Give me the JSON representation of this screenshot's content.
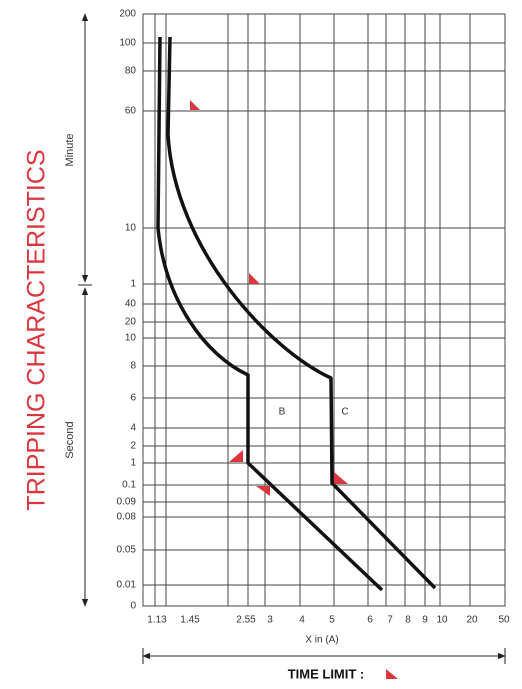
{
  "chart_data": {
    "type": "tripping-curve",
    "title": "TRIPPING CHARACTERISTICS",
    "xlabel": "X in (A)",
    "xticks": [
      1.13,
      1.45,
      2.55,
      3,
      4,
      5,
      6,
      7,
      8,
      9,
      10,
      20,
      50
    ],
    "y_sections": [
      {
        "label": "Minute",
        "ticks": [
          200,
          100,
          80,
          60,
          10,
          1
        ]
      },
      {
        "label": "Second",
        "ticks": [
          40,
          20,
          10,
          8,
          6,
          4,
          2,
          1,
          0.1,
          0.09,
          0.08,
          0.05,
          0.01,
          0
        ]
      }
    ],
    "curve_labels": [
      "B",
      "C"
    ],
    "footer": "TIME LIMIT :"
  }
}
